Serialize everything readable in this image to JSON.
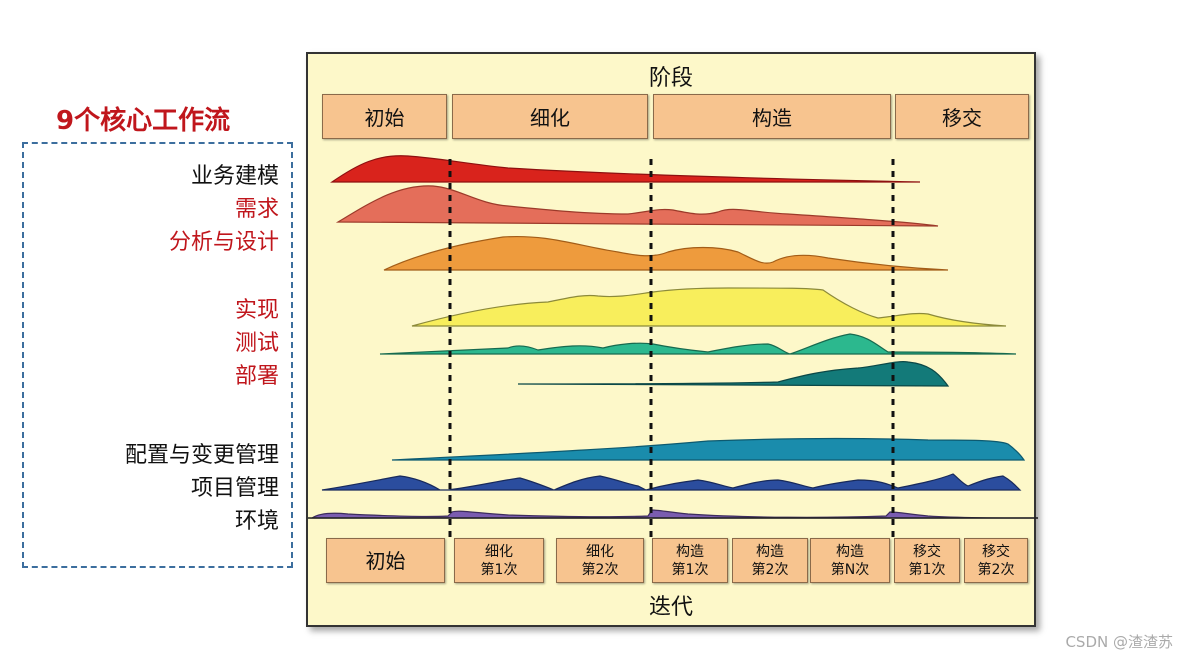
{
  "left_title": "9个核心工作流",
  "workflows": [
    {
      "label": "业务建模",
      "color": "black",
      "fill": "#d9231c",
      "stroke": "#8e1010"
    },
    {
      "label": "需求",
      "color": "red",
      "fill": "#e46e5a",
      "stroke": "#9c3a2a"
    },
    {
      "label": "分析与设计",
      "color": "red",
      "fill": "#ee9b3d",
      "stroke": "#a35d18"
    },
    {
      "label": "实现",
      "color": "red",
      "fill": "#f8ee5c",
      "stroke": "#8c8a3a"
    },
    {
      "label": "测试",
      "color": "red",
      "fill": "#2cb88e",
      "stroke": "#176a4f"
    },
    {
      "label": "部署",
      "color": "red",
      "fill": "#137a79",
      "stroke": "#0b4847"
    },
    {
      "label": "配置与变更管理",
      "color": "black",
      "fill": "#1a8cac",
      "stroke": "#0d5a70"
    },
    {
      "label": "项目管理",
      "color": "black",
      "fill": "#2b4d9e",
      "stroke": "#182a5c"
    },
    {
      "label": "环境",
      "color": "black",
      "fill": "#7a5cb0",
      "stroke": "#3d2c5e"
    }
  ],
  "phase_title": "阶段",
  "phases": [
    "初始",
    "细化",
    "构造",
    "移交"
  ],
  "iteration_title": "迭代",
  "iterations": [
    {
      "line1": "初始",
      "line2": ""
    },
    {
      "line1": "细化",
      "line2": "第1次"
    },
    {
      "line1": "细化",
      "line2": "第2次"
    },
    {
      "line1": "构造",
      "line2": "第1次"
    },
    {
      "line1": "构造",
      "line2": "第2次"
    },
    {
      "line1": "构造",
      "line2": "第N次"
    },
    {
      "line1": "移交",
      "line2": "第1次"
    },
    {
      "line1": "移交",
      "line2": "第2次"
    }
  ],
  "watermark": "CSDN @渣渣苏"
}
